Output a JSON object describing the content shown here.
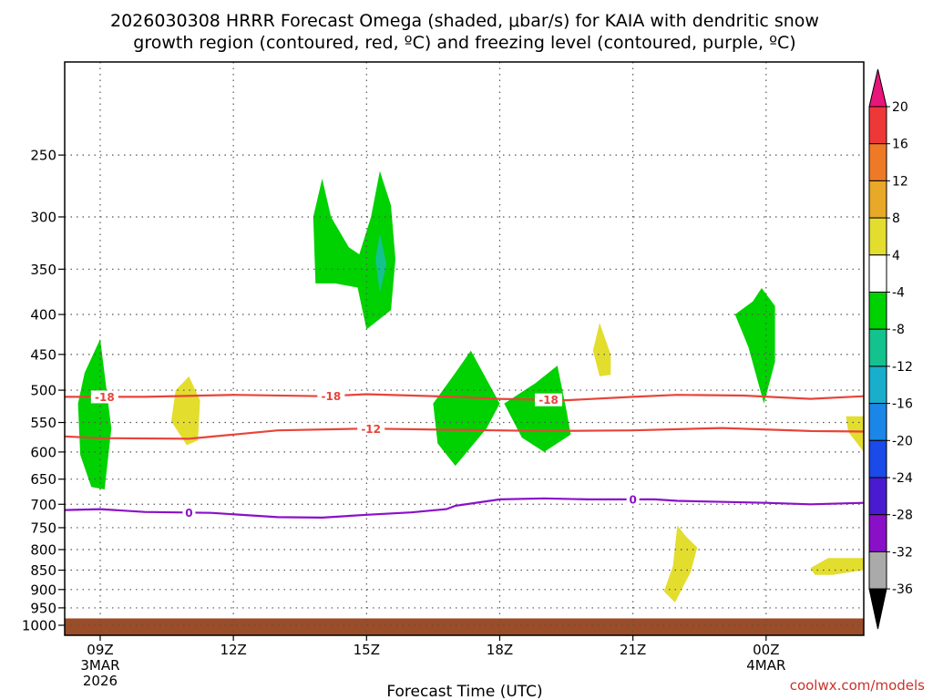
{
  "title_lines": [
    "2026030308 HRRR Forecast Omega (shaded, μbar/s) for KAIA with dendritic snow",
    "growth region (contoured, red, ºC) and freezing level (contoured, purple, ºC)"
  ],
  "credit": "coolwx.com/models",
  "chart_data": {
    "type": "time-height cross section",
    "xlabel": "Forecast Time (UTC)",
    "ylabel": "",
    "x_range_hours": [
      -0.8,
      17.2
    ],
    "x_ticks": [
      {
        "hour": 0,
        "lines": [
          "09Z",
          "3MAR",
          "2026"
        ]
      },
      {
        "hour": 3,
        "lines": [
          "12Z"
        ]
      },
      {
        "hour": 6,
        "lines": [
          "15Z"
        ]
      },
      {
        "hour": 9,
        "lines": [
          "18Z"
        ]
      },
      {
        "hour": 12,
        "lines": [
          "21Z"
        ]
      },
      {
        "hour": 15,
        "lines": [
          "00Z",
          "4MAR"
        ]
      }
    ],
    "y_scale": "log pressure (inverted)",
    "y_range_mb": [
      1030,
      190
    ],
    "y_ticks": [
      250,
      300,
      350,
      400,
      450,
      500,
      550,
      600,
      650,
      700,
      750,
      800,
      850,
      900,
      950,
      1000
    ],
    "ground_band_mb": [
      980,
      1030
    ],
    "colors": {
      "ground": "#9a4d28",
      "dsgz": "#e8443a",
      "freezing": "#8a10c8",
      "green": "#00d100",
      "teal": "#14c28e",
      "yellow": "#e3dd2e",
      "grid": "#555555"
    },
    "shaded_areas": [
      {
        "value_range": "-8 to -4",
        "points": [
          [
            -0.5,
            520
          ],
          [
            -0.35,
            475
          ],
          [
            0,
            430
          ],
          [
            0.25,
            560
          ],
          [
            0.1,
            670
          ],
          [
            -0.2,
            665
          ],
          [
            -0.45,
            605
          ]
        ]
      },
      {
        "value_range": "4 to 8",
        "points": [
          [
            1.6,
            548
          ],
          [
            1.7,
            500
          ],
          [
            2,
            480
          ],
          [
            2.25,
            515
          ],
          [
            2.2,
            580
          ],
          [
            1.95,
            588
          ]
        ]
      },
      {
        "value_range": "-8 to -4",
        "points": [
          [
            4.8,
            300
          ],
          [
            5,
            268
          ],
          [
            5.2,
            300
          ],
          [
            5.6,
            328
          ],
          [
            6.0,
            340
          ],
          [
            5.85,
            370
          ],
          [
            5.3,
            365
          ],
          [
            4.85,
            365
          ]
        ]
      },
      {
        "value_range": "-8 to -4",
        "points": [
          [
            5.8,
            340
          ],
          [
            6.1,
            300
          ],
          [
            6.3,
            262
          ],
          [
            6.55,
            290
          ],
          [
            6.65,
            340
          ],
          [
            6.55,
            395
          ],
          [
            6.0,
            418
          ],
          [
            5.8,
            370
          ]
        ]
      },
      {
        "value_range": "-12 to -8",
        "points": [
          [
            6.2,
            340
          ],
          [
            6.3,
            315
          ],
          [
            6.45,
            345
          ],
          [
            6.3,
            375
          ]
        ]
      },
      {
        "value_range": "-8 to -4",
        "points": [
          [
            7.5,
            520
          ],
          [
            8.0,
            475
          ],
          [
            8.35,
            445
          ],
          [
            9.0,
            520
          ],
          [
            8.7,
            560
          ],
          [
            8.0,
            625
          ],
          [
            7.6,
            585
          ]
        ]
      },
      {
        "value_range": "-8 to -4",
        "points": [
          [
            9.1,
            520
          ],
          [
            9.8,
            490
          ],
          [
            10.3,
            465
          ],
          [
            10.5,
            530
          ],
          [
            10.6,
            570
          ],
          [
            10.0,
            600
          ],
          [
            9.5,
            575
          ]
        ]
      },
      {
        "value_range": "4 to 8",
        "points": [
          [
            11.1,
            445
          ],
          [
            11.25,
            410
          ],
          [
            11.5,
            450
          ],
          [
            11.5,
            478
          ],
          [
            11.25,
            480
          ]
        ]
      },
      {
        "value_range": "-8 to -4",
        "points": [
          [
            14.3,
            400
          ],
          [
            14.7,
            385
          ],
          [
            14.9,
            370
          ],
          [
            15.2,
            390
          ],
          [
            15.2,
            460
          ],
          [
            14.95,
            520
          ],
          [
            14.6,
            440
          ]
        ]
      },
      {
        "value_range": "4 to 8",
        "points": [
          [
            16.8,
            540
          ],
          [
            17.2,
            540
          ],
          [
            17.2,
            600
          ],
          [
            17,
            580
          ],
          [
            16.85,
            565
          ]
        ]
      },
      {
        "value_range": "4 to 8",
        "points": [
          [
            13.0,
            745
          ],
          [
            13.2,
            770
          ],
          [
            13.45,
            795
          ],
          [
            13.3,
            855
          ],
          [
            12.95,
            935
          ],
          [
            12.7,
            905
          ],
          [
            12.9,
            840
          ]
        ]
      },
      {
        "value_range": "4 to 8",
        "points": [
          [
            16.0,
            845
          ],
          [
            16.4,
            820
          ],
          [
            17.2,
            820
          ],
          [
            17.2,
            850
          ],
          [
            16.5,
            862
          ],
          [
            16.1,
            862
          ]
        ]
      }
    ],
    "contours": [
      {
        "name": "-18",
        "kind": "dsgz",
        "label_positions_hours": [
          0.1,
          5.2,
          10.1
        ],
        "points": [
          [
            -0.8,
            510
          ],
          [
            1,
            510
          ],
          [
            3,
            507
          ],
          [
            5,
            509
          ],
          [
            6,
            506
          ],
          [
            8,
            510
          ],
          [
            9,
            513
          ],
          [
            10.5,
            515
          ],
          [
            12,
            510
          ],
          [
            13,
            507
          ],
          [
            14.5,
            508
          ],
          [
            16,
            513
          ],
          [
            17.2,
            509
          ]
        ]
      },
      {
        "name": "-12",
        "kind": "dsgz",
        "label_positions_hours": [
          6.1
        ],
        "points": [
          [
            -0.8,
            573
          ],
          [
            0,
            576
          ],
          [
            2,
            577
          ],
          [
            3,
            570
          ],
          [
            4,
            563
          ],
          [
            6,
            560
          ],
          [
            8,
            562
          ],
          [
            10,
            564
          ],
          [
            12,
            563
          ],
          [
            14,
            559
          ],
          [
            16,
            564
          ],
          [
            17.2,
            565
          ]
        ]
      },
      {
        "name": "0",
        "kind": "freezing",
        "label_positions_hours": [
          2.0,
          12.0
        ],
        "points": [
          [
            -0.8,
            712
          ],
          [
            0,
            710
          ],
          [
            1,
            716
          ],
          [
            2.5,
            718
          ],
          [
            4,
            727
          ],
          [
            5,
            728
          ],
          [
            6,
            722
          ],
          [
            7,
            717
          ],
          [
            7.8,
            710
          ],
          [
            8,
            703
          ],
          [
            9,
            690
          ],
          [
            10,
            688
          ],
          [
            11,
            690
          ],
          [
            12,
            690
          ],
          [
            12.5,
            690
          ],
          [
            13,
            693
          ],
          [
            15,
            697
          ],
          [
            16,
            700
          ],
          [
            17.2,
            697
          ]
        ]
      }
    ],
    "colorbar": {
      "ticks": [
        "20",
        "16",
        "12",
        "8",
        "4",
        "-4",
        "-8",
        "-12",
        "-16",
        "-20",
        "-24",
        "-28",
        "-32",
        "-36"
      ],
      "colors": [
        "#ee3838",
        "#ee7a28",
        "#e8a828",
        "#e3dd2e",
        "#ffffff",
        "#00d100",
        "#14c28e",
        "#18aecc",
        "#1a86e8",
        "#1a4ae8",
        "#4a1ad0",
        "#8a10c8",
        "#aaaaaa"
      ],
      "top_arrow": "#e8157a",
      "bottom_arrow": "#000000"
    }
  }
}
